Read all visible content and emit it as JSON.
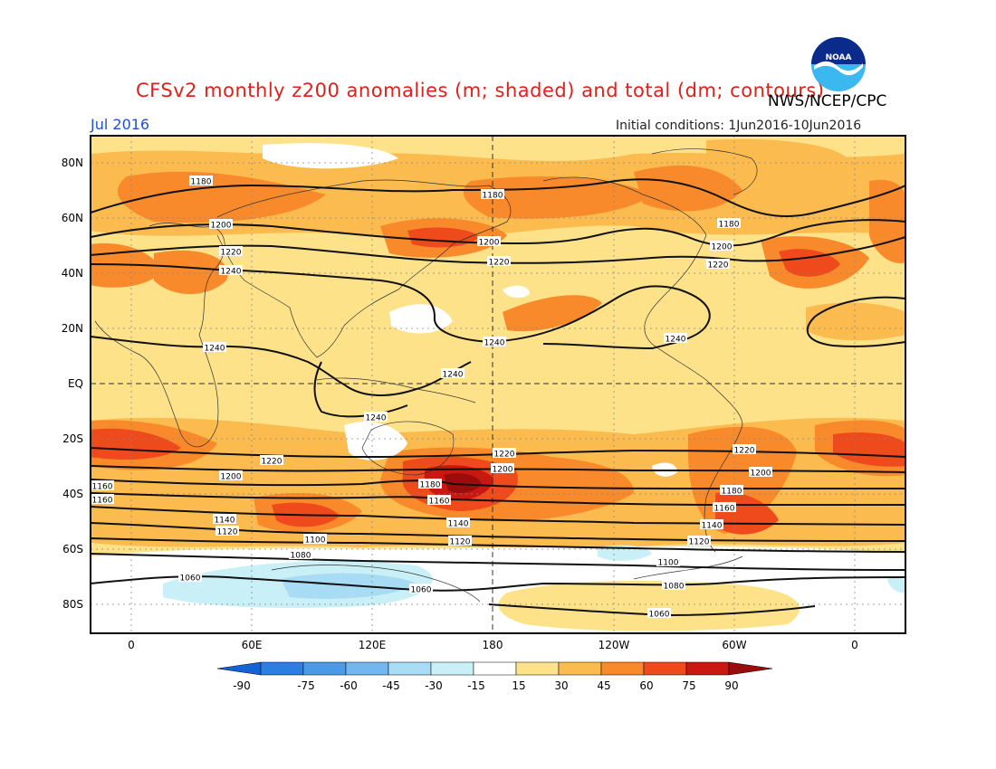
{
  "header": {
    "title": "CFSv2 monthly z200 anomalies (m; shaded) and total (dm; contours)",
    "agency": "NWS/NCEP/CPC",
    "valid_month": "Jul 2016",
    "initial_conditions": "Initial conditions: 1Jun2016-10Jun2016",
    "logo_text": "NOAA"
  },
  "map": {
    "lat_labels": [
      "80N",
      "60N",
      "40N",
      "20N",
      "EQ",
      "20S",
      "40S",
      "60S",
      "80S"
    ],
    "lon_labels": [
      "0",
      "60E",
      "120E",
      "180",
      "120W",
      "60W",
      "0"
    ],
    "contour_labels": [
      "1180",
      "1200",
      "1220",
      "1240",
      "1240",
      "1240",
      "1240",
      "1240",
      "1180",
      "1200",
      "1220",
      "1180",
      "1200",
      "1220",
      "1240",
      "1220",
      "1200",
      "1160",
      "1160",
      "1140",
      "1120",
      "1100",
      "1080",
      "1060",
      "1180",
      "1160",
      "1220",
      "1200",
      "1140",
      "1120",
      "1060",
      "1220",
      "1200",
      "1180",
      "1160",
      "1140",
      "1120",
      "1100",
      "1080",
      "1060"
    ]
  },
  "colorbar": {
    "labels": [
      "-90",
      "-75",
      "-60",
      "-45",
      "-30",
      "-15",
      "15",
      "30",
      "45",
      "60",
      "75",
      "90"
    ],
    "colors": [
      "#1463d6",
      "#2b7fe0",
      "#4a9ae8",
      "#74b6ef",
      "#a8dcf4",
      "#c9f0f7",
      "#ffffff",
      "#fde28a",
      "#fbbb4f",
      "#f88a2b",
      "#ef4a1c",
      "#c91811",
      "#9b0d0d"
    ]
  }
}
